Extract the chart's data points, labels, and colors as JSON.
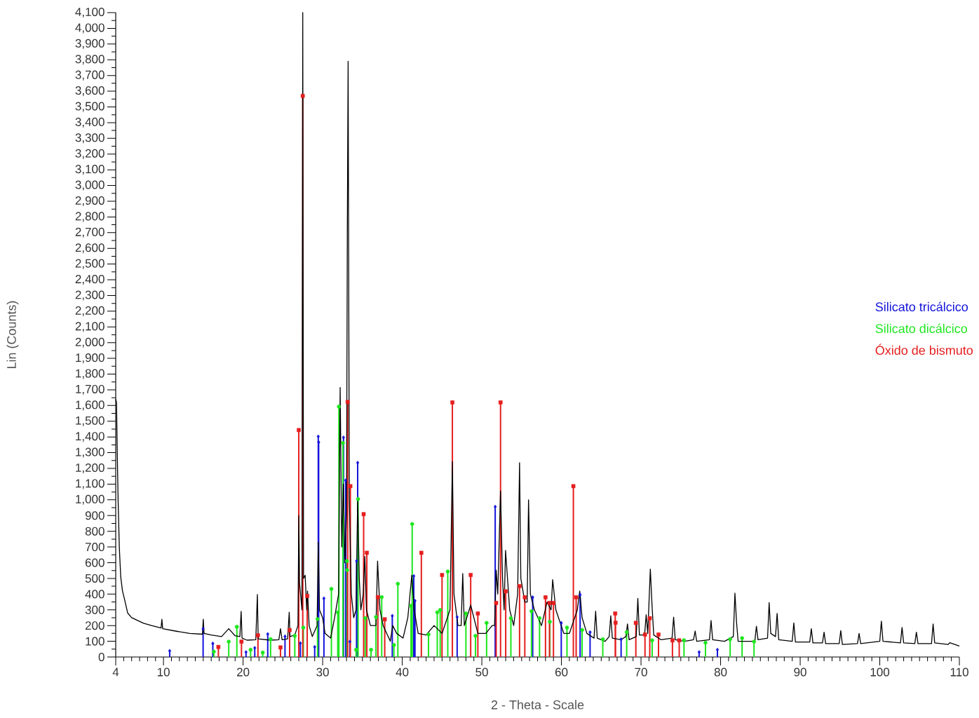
{
  "chart_data": {
    "type": "line",
    "xlabel": "2 - Theta - Scale",
    "ylabel": "Lin (Counts)",
    "legend": "right",
    "xlim": [
      4,
      110
    ],
    "ylim": [
      0,
      4100
    ],
    "xticks": [
      4,
      {
        "value": 5,
        "label": null
      },
      {
        "value": 6,
        "label": null
      },
      {
        "value": 7,
        "label": null
      },
      {
        "value": 8,
        "label": null
      },
      {
        "value": 9,
        "label": null
      },
      10,
      {
        "value": 11,
        "label": null
      },
      {
        "value": 12,
        "label": null
      },
      {
        "value": 13,
        "label": null
      },
      {
        "value": 14,
        "label": null
      },
      {
        "value": 15,
        "label": null
      },
      {
        "value": 16,
        "label": null
      },
      {
        "value": 17,
        "label": null
      },
      {
        "value": 18,
        "label": null
      },
      {
        "value": 19,
        "label": null
      },
      20,
      {
        "value": 21,
        "label": null
      },
      {
        "value": 22,
        "label": null
      },
      {
        "value": 23,
        "label": null
      },
      {
        "value": 24,
        "label": null
      },
      {
        "value": 25,
        "label": null
      },
      {
        "value": 26,
        "label": null
      },
      {
        "value": 27,
        "label": null
      },
      {
        "value": 28,
        "label": null
      },
      {
        "value": 29,
        "label": null
      },
      30,
      {
        "value": 31,
        "label": null
      },
      {
        "value": 32,
        "label": null
      },
      {
        "value": 33,
        "label": null
      },
      {
        "value": 34,
        "label": null
      },
      {
        "value": 35,
        "label": null
      },
      {
        "value": 36,
        "label": null
      },
      {
        "value": 37,
        "label": null
      },
      {
        "value": 38,
        "label": null
      },
      {
        "value": 39,
        "label": null
      },
      40,
      {
        "value": 41,
        "label": null
      },
      {
        "value": 42,
        "label": null
      },
      {
        "value": 43,
        "label": null
      },
      {
        "value": 44,
        "label": null
      },
      {
        "value": 45,
        "label": null
      },
      {
        "value": 46,
        "label": null
      },
      {
        "value": 47,
        "label": null
      },
      {
        "value": 48,
        "label": null
      },
      {
        "value": 49,
        "label": null
      },
      50,
      {
        "value": 51,
        "label": null
      },
      {
        "value": 52,
        "label": null
      },
      {
        "value": 53,
        "label": null
      },
      {
        "value": 54,
        "label": null
      },
      {
        "value": 55,
        "label": null
      },
      {
        "value": 56,
        "label": null
      },
      {
        "value": 57,
        "label": null
      },
      {
        "value": 58,
        "label": null
      },
      {
        "value": 59,
        "label": null
      },
      60,
      {
        "value": 61,
        "label": null
      },
      {
        "value": 62,
        "label": null
      },
      {
        "value": 63,
        "label": null
      },
      {
        "value": 64,
        "label": null
      },
      {
        "value": 65,
        "label": null
      },
      {
        "value": 66,
        "label": null
      },
      {
        "value": 67,
        "label": null
      },
      {
        "value": 68,
        "label": null
      },
      {
        "value": 69,
        "label": null
      },
      70,
      {
        "value": 71,
        "label": null
      },
      {
        "value": 72,
        "label": null
      },
      {
        "value": 73,
        "label": null
      },
      {
        "value": 74,
        "label": null
      },
      {
        "value": 75,
        "label": null
      },
      {
        "value": 76,
        "label": null
      },
      {
        "value": 77,
        "label": null
      },
      {
        "value": 78,
        "label": null
      },
      {
        "value": 79,
        "label": null
      },
      80,
      {
        "value": 81,
        "label": null
      },
      {
        "value": 82,
        "label": null
      },
      {
        "value": 83,
        "label": null
      },
      {
        "value": 84,
        "label": null
      },
      {
        "value": 85,
        "label": null
      },
      {
        "value": 86,
        "label": null
      },
      {
        "value": 87,
        "label": null
      },
      {
        "value": 88,
        "label": null
      },
      {
        "value": 89,
        "label": null
      },
      90,
      {
        "value": 91,
        "label": null
      },
      {
        "value": 92,
        "label": null
      },
      {
        "value": 93,
        "label": null
      },
      {
        "value": 94,
        "label": null
      },
      {
        "value": 95,
        "label": null
      },
      {
        "value": 96,
        "label": null
      },
      {
        "value": 97,
        "label": null
      },
      {
        "value": 98,
        "label": null
      },
      {
        "value": 99,
        "label": null
      },
      100,
      {
        "value": 101,
        "label": null
      },
      {
        "value": 102,
        "label": null
      },
      {
        "value": 103,
        "label": null
      },
      {
        "value": 104,
        "label": null
      },
      {
        "value": 105,
        "label": null
      },
      {
        "value": 106,
        "label": null
      },
      {
        "value": 107,
        "label": null
      },
      {
        "value": 108,
        "label": null
      },
      {
        "value": 109,
        "label": null
      },
      110
    ],
    "yticks": [
      0,
      {
        "value": 50,
        "label": null
      },
      100,
      {
        "value": 150,
        "label": null
      },
      200,
      {
        "value": 250,
        "label": null
      },
      300,
      {
        "value": 350,
        "label": null
      },
      400,
      {
        "value": 450,
        "label": null
      },
      500,
      {
        "value": 550,
        "label": null
      },
      600,
      {
        "value": 650,
        "label": null
      },
      700,
      {
        "value": 750,
        "label": null
      },
      800,
      {
        "value": 850,
        "label": null
      },
      900,
      {
        "value": 950,
        "label": null
      },
      {
        "value": 1000,
        "label": "1,000"
      },
      {
        "value": 1050,
        "label": null
      },
      {
        "value": 1100,
        "label": "1,100"
      },
      {
        "value": 1150,
        "label": null
      },
      {
        "value": 1200,
        "label": "1,200"
      },
      {
        "value": 1250,
        "label": null
      },
      {
        "value": 1300,
        "label": "1,300"
      },
      {
        "value": 1350,
        "label": null
      },
      {
        "value": 1400,
        "label": "1,400"
      },
      {
        "value": 1450,
        "label": null
      },
      {
        "value": 1500,
        "label": "1,500"
      },
      {
        "value": 1550,
        "label": null
      },
      {
        "value": 1600,
        "label": "1,600"
      },
      {
        "value": 1650,
        "label": null
      },
      {
        "value": 1700,
        "label": "1,700"
      },
      {
        "value": 1750,
        "label": null
      },
      {
        "value": 1800,
        "label": "1,800"
      },
      {
        "value": 1850,
        "label": null
      },
      {
        "value": 1900,
        "label": "1,900"
      },
      {
        "value": 1950,
        "label": null
      },
      {
        "value": 2000,
        "label": "2,000"
      },
      {
        "value": 2050,
        "label": null
      },
      {
        "value": 2100,
        "label": "2,100"
      },
      {
        "value": 2150,
        "label": null
      },
      {
        "value": 2200,
        "label": "2,200"
      },
      {
        "value": 2250,
        "label": null
      },
      {
        "value": 2300,
        "label": "2,300"
      },
      {
        "value": 2350,
        "label": null
      },
      {
        "value": 2400,
        "label": "2,400"
      },
      {
        "value": 2450,
        "label": null
      },
      {
        "value": 2500,
        "label": "2,500"
      },
      {
        "value": 2550,
        "label": null
      },
      {
        "value": 2600,
        "label": "2,600"
      },
      {
        "value": 2650,
        "label": null
      },
      {
        "value": 2700,
        "label": "2,700"
      },
      {
        "value": 2750,
        "label": null
      },
      {
        "value": 2800,
        "label": "2,800"
      },
      {
        "value": 2850,
        "label": null
      },
      {
        "value": 2900,
        "label": "2,900"
      },
      {
        "value": 2950,
        "label": null
      },
      {
        "value": 3000,
        "label": "3,000"
      },
      {
        "value": 3050,
        "label": null
      },
      {
        "value": 3100,
        "label": "3,100"
      },
      {
        "value": 3150,
        "label": null
      },
      {
        "value": 3200,
        "label": "3,200"
      },
      {
        "value": 3250,
        "label": null
      },
      {
        "value": 3300,
        "label": "3,300"
      },
      {
        "value": 3350,
        "label": null
      },
      {
        "value": 3400,
        "label": "3,400"
      },
      {
        "value": 3450,
        "label": null
      },
      {
        "value": 3500,
        "label": "3,500"
      },
      {
        "value": 3550,
        "label": null
      },
      {
        "value": 3600,
        "label": "3,600"
      },
      {
        "value": 3650,
        "label": null
      },
      {
        "value": 3700,
        "label": "3,700"
      },
      {
        "value": 3750,
        "label": null
      },
      {
        "value": 3800,
        "label": "3,800"
      },
      {
        "value": 3850,
        "label": null
      },
      {
        "value": 3900,
        "label": "3,900"
      },
      {
        "value": 3950,
        "label": null
      },
      {
        "value": 4000,
        "label": "4,000"
      },
      {
        "value": 4050,
        "label": null
      },
      {
        "value": 4100,
        "label": "4,100"
      }
    ],
    "series": [
      {
        "color": "#000000",
        "marker": "none",
        "x": [
          4.0,
          4.1,
          4.2,
          4.3,
          4.45,
          4.63,
          4.85,
          5.07,
          5.5,
          6.0,
          7.5,
          8.5,
          9.7,
          9.8,
          9.9,
          11.5,
          13.3,
          14.9,
          15.0,
          15.1,
          16.0,
          17.3,
          18.2,
          19.0,
          19.6,
          19.76,
          19.87,
          20.5,
          21.6,
          21.8,
          21.9,
          23.4,
          24.5,
          24.7,
          24.9,
          25.6,
          25.8,
          25.9,
          26.5,
          26.9,
          27.0,
          27.1,
          27.4,
          27.5,
          27.6,
          27.8,
          28.0,
          28.1,
          28.3,
          28.7,
          29.3,
          29.45,
          29.6,
          30.0,
          30.3,
          31.0,
          31.5,
          32.0,
          32.2,
          32.4,
          32.6,
          32.8,
          33.0,
          33.1,
          33.2,
          33.35,
          33.6,
          33.9,
          34.2,
          34.4,
          34.6,
          34.8,
          35.1,
          35.3,
          35.5,
          36.0,
          36.7,
          36.9,
          37.2,
          37.6,
          38.5,
          38.8,
          39.3,
          40.1,
          40.7,
          41.2,
          41.5,
          42.0,
          43.0,
          44.0,
          45.0,
          46.0,
          46.3,
          46.5,
          47.0,
          47.4,
          47.6,
          47.8,
          48.6,
          49.5,
          50.5,
          51.3,
          51.6,
          51.8,
          52.0,
          52.35,
          52.6,
          52.8,
          52.98,
          53.5,
          54.0,
          54.5,
          54.74,
          54.9,
          55.4,
          55.7,
          55.87,
          56.1,
          56.6,
          57.5,
          58.2,
          58.7,
          58.9,
          59.3,
          60.3,
          61.0,
          62.0,
          62.3,
          62.6,
          63.2,
          64.1,
          64.3,
          64.5,
          65.5,
          66.0,
          66.2,
          66.4,
          67.5,
          68.1,
          68.3,
          68.5,
          69.4,
          69.6,
          69.8,
          70.45,
          70.65,
          70.85,
          71.17,
          71.4,
          71.6,
          72.5,
          73.9,
          74.1,
          74.3,
          75.5,
          76.6,
          76.8,
          77.0,
          78.6,
          78.8,
          79.0,
          80.5,
          81.6,
          81.8,
          82.0,
          82.2,
          84.3,
          84.5,
          84.7,
          85.9,
          86.1,
          86.3,
          86.9,
          87.1,
          87.3,
          89.0,
          89.2,
          89.4,
          91.2,
          91.4,
          91.6,
          92.8,
          93.0,
          93.2,
          94.9,
          95.1,
          95.3,
          97.2,
          97.4,
          97.6,
          100.0,
          100.2,
          100.4,
          102.6,
          102.8,
          103.0,
          104.4,
          104.6,
          104.8,
          106.5,
          106.7,
          106.9,
          108.6,
          108.8,
          110.0
        ],
        "values": [
          1640,
          1620,
          1280,
          1000,
          700,
          510,
          420,
          375,
          280,
          250,
          215,
          200,
          185,
          240,
          180,
          165,
          150,
          145,
          240,
          150,
          140,
          130,
          180,
          135,
          130,
          290,
          120,
          107,
          110,
          397,
          115,
          107,
          110,
          180,
          110,
          115,
          285,
          130,
          140,
          200,
          900,
          470,
          300,
          4100,
          500,
          520,
          300,
          420,
          200,
          130,
          200,
          730,
          300,
          250,
          150,
          120,
          250,
          400,
          1715,
          700,
          1100,
          600,
          900,
          2700,
          3790,
          1000,
          400,
          250,
          300,
          1010,
          500,
          300,
          400,
          640,
          300,
          200,
          200,
          610,
          300,
          200,
          100,
          200,
          150,
          120,
          250,
          520,
          300,
          150,
          140,
          200,
          150,
          300,
          1243,
          400,
          200,
          200,
          531,
          200,
          330,
          150,
          150,
          200,
          200,
          553,
          400,
          1057,
          500,
          300,
          678,
          300,
          200,
          400,
          1236,
          500,
          350,
          350,
          1000,
          400,
          300,
          200,
          350,
          300,
          492,
          300,
          150,
          150,
          300,
          420,
          250,
          150,
          120,
          291,
          120,
          100,
          130,
          262,
          120,
          110,
          130,
          210,
          110,
          130,
          373,
          140,
          140,
          269,
          150,
          559,
          313,
          140,
          110,
          120,
          254,
          110,
          100,
          110,
          165,
          100,
          110,
          232,
          110,
          100,
          130,
          406,
          224,
          100,
          100,
          196,
          110,
          120,
          346,
          150,
          130,
          277,
          110,
          100,
          217,
          95,
          95,
          180,
          90,
          90,
          158,
          85,
          85,
          168,
          80,
          85,
          150,
          85,
          100,
          228,
          100,
          90,
          188,
          90,
          85,
          158,
          85,
          85,
          210,
          90,
          80,
          91,
          70
        ]
      },
      {
        "type": "lollipop",
        "name": "Silicato tricálcico",
        "color": "#1414dc",
        "marker": "diamond",
        "x": [
          10.78,
          14.98,
          16.2,
          20.37,
          21.47,
          23.1,
          25.27,
          27.2,
          29.0,
          29.45,
          29.5,
          30.16,
          32.62,
          32.9,
          33.42,
          34.26,
          34.4,
          38.75,
          41.45,
          41.6,
          46.9,
          51.68,
          56.39,
          59.98,
          62.35,
          63.6,
          67.5,
          77.3,
          79.6
        ],
        "values": [
          39,
          180,
          86,
          31,
          58,
          146,
          131,
          88,
          64,
          1403,
          1367,
          373,
          1397,
          1124,
          98,
          611,
          1236,
          262,
          515,
          358,
          254,
          956,
          380,
          217,
          396,
          158,
          113,
          31,
          46
        ]
      },
      {
        "type": "lollipop",
        "name": "Silicato dicálcico",
        "color": "#1ee61e",
        "marker": "circle",
        "x": [
          16.33,
          18.2,
          19.22,
          20.95,
          22.47,
          23.46,
          26.5,
          27.57,
          29.36,
          31.1,
          31.9,
          32.04,
          32.55,
          33.05,
          33.08,
          34.2,
          34.45,
          35.35,
          36.08,
          36.7,
          37.42,
          38.95,
          39.45,
          41.1,
          41.25,
          43.3,
          44.4,
          44.77,
          45.72,
          48.0,
          49.2,
          50.6,
          53.65,
          56.24,
          57.25,
          58.55,
          60.7,
          62.6,
          65.2,
          68.2,
          71.4,
          75.4,
          78.1,
          81.2,
          82.7,
          84.2
        ],
        "values": [
          34,
          98,
          192,
          46,
          28,
          113,
          135,
          187,
          242,
          433,
          284,
          1593,
          1362,
          611,
          553,
          46,
          1005,
          247,
          46,
          254,
          381,
          76,
          466,
          326,
          846,
          143,
          284,
          299,
          544,
          277,
          135,
          217,
          247,
          291,
          247,
          224,
          187,
          172,
          113,
          158,
          106,
          107,
          91,
          113,
          120,
          98
        ]
      },
      {
        "type": "lollipop",
        "name": "Óxido de bismuto",
        "color": "#e61e1e",
        "marker": "square",
        "x": [
          16.9,
          19.8,
          21.87,
          24.7,
          25.85,
          27.0,
          27.5,
          28.06,
          33.14,
          33.48,
          35.15,
          35.55,
          36.94,
          37.8,
          42.4,
          45.0,
          46.3,
          48.6,
          49.5,
          51.8,
          52.35,
          53.0,
          54.74,
          55.4,
          58.0,
          58.5,
          59.0,
          61.5,
          61.85,
          66.76,
          66.8,
          69.35,
          70.5,
          71.1,
          72.2,
          73.95,
          74.8
        ],
        "values": [
          64,
          98,
          138,
          61,
          171,
          1444,
          3570,
          388,
          1623,
          1087,
          909,
          663,
          381,
          240,
          663,
          522,
          1620,
          522,
          277,
          344,
          1620,
          418,
          451,
          380,
          380,
          344,
          344,
          1087,
          380,
          277,
          218,
          217,
          143,
          247,
          143,
          106,
          106
        ]
      }
    ]
  }
}
